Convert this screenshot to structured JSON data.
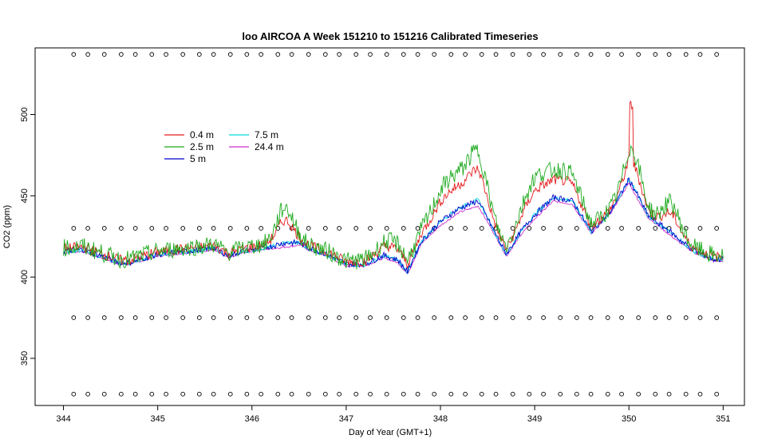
{
  "chart_data": {
    "type": "line",
    "title": "loo AIRCOA A  Week 151210 to 151216  Calibrated Timeseries",
    "xlabel": "Day of Year (GMT+1)",
    "ylabel": "CO2 (ppm)",
    "xlim": [
      344,
      351
    ],
    "ylim": [
      321,
      541
    ],
    "x_ticks": [
      "344",
      "345",
      "346",
      "347",
      "348",
      "349",
      "350",
      "351"
    ],
    "y_ticks": [
      "350",
      "400",
      "450",
      "500"
    ],
    "legend_placement": "top-left",
    "legend": [
      {
        "name": "0.4 m",
        "color": "#e31a1c"
      },
      {
        "name": "2.5 m",
        "color": "#1faa1f"
      },
      {
        "name": "5 m",
        "color": "#0000cc"
      },
      {
        "name": "7.5 m",
        "color": "#00dcdc"
      },
      {
        "name": "24.4 m",
        "color": "#cc33cc"
      }
    ],
    "reference_point_rows": [
      {
        "y": 537,
        "color": "#000000"
      },
      {
        "y": 430,
        "color": "#000000"
      },
      {
        "y": 375,
        "color": "#000000"
      },
      {
        "y": 328,
        "color": "#000000"
      }
    ],
    "base_series": {
      "x": [
        344.0,
        344.2,
        344.4,
        344.6,
        344.7,
        345.0,
        345.3,
        345.6,
        345.75,
        345.9,
        346.1,
        346.4,
        346.5,
        346.6,
        346.8,
        347.0,
        347.2,
        347.4,
        347.55,
        347.65,
        347.8,
        348.0,
        348.2,
        348.4,
        348.55,
        348.7,
        348.85,
        349.0,
        349.2,
        349.4,
        349.6,
        349.8,
        350.0,
        350.2,
        350.5,
        350.7,
        350.9,
        351.0
      ],
      "y": [
        416,
        417,
        413,
        409,
        409,
        414,
        416,
        418,
        413,
        416,
        418,
        420,
        421,
        418,
        414,
        408,
        408,
        413,
        410,
        403,
        422,
        433,
        441,
        445,
        430,
        414,
        427,
        437,
        448,
        446,
        428,
        440,
        459,
        438,
        424,
        416,
        411,
        411
      ]
    },
    "series": [
      {
        "name": "0.4 m",
        "color": "#e31a1c"
      },
      {
        "name": "2.5 m",
        "color": "#1faa1f"
      },
      {
        "name": "5 m",
        "color": "#0000cc"
      },
      {
        "name": "7.5 m",
        "color": "#00dcdc"
      },
      {
        "name": "24.4 m",
        "color": "#cc33cc"
      }
    ]
  }
}
